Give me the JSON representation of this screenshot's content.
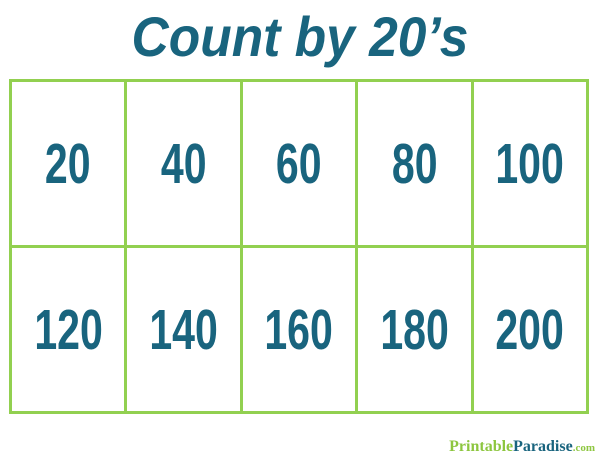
{
  "page": {
    "title": "Count by 20’s"
  },
  "grid": {
    "rows": [
      [
        "20",
        "40",
        "60",
        "80",
        "100"
      ],
      [
        "120",
        "140",
        "160",
        "180",
        "200"
      ]
    ]
  },
  "footer": {
    "brand_primary": "Printable",
    "brand_secondary": "Paradise",
    "brand_tld": ".com"
  },
  "colors": {
    "grid_green": "#92D050",
    "text_teal": "#19647E",
    "logo_green": "#8DC63F",
    "background": "#FFFFFF"
  }
}
